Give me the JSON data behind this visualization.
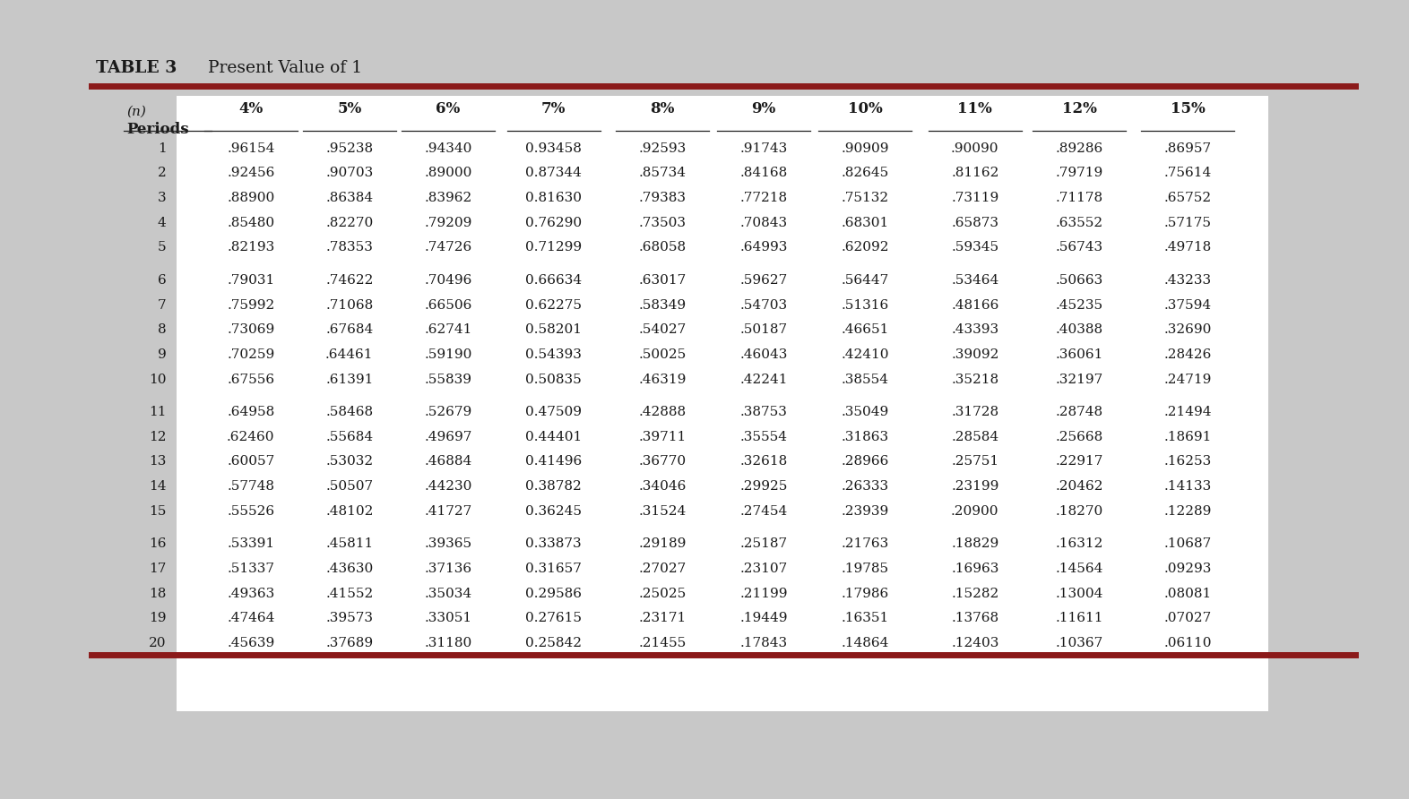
{
  "title_bold": "TABLE 3",
  "title_normal": "  Present Value of 1",
  "columns": [
    "(n)\nPeriods",
    "4%",
    "5%",
    "6%",
    "7%",
    "8%",
    "9%",
    "10%",
    "11%",
    "12%",
    "15%"
  ],
  "rows": [
    [
      1,
      ".96154",
      ".95238",
      ".94340",
      "0.93458",
      ".92593",
      ".91743",
      ".90909",
      ".90090",
      ".89286",
      ".86957"
    ],
    [
      2,
      ".92456",
      ".90703",
      ".89000",
      "0.87344",
      ".85734",
      ".84168",
      ".82645",
      ".81162",
      ".79719",
      ".75614"
    ],
    [
      3,
      ".88900",
      ".86384",
      ".83962",
      "0.81630",
      ".79383",
      ".77218",
      ".75132",
      ".73119",
      ".71178",
      ".65752"
    ],
    [
      4,
      ".85480",
      ".82270",
      ".79209",
      "0.76290",
      ".73503",
      ".70843",
      ".68301",
      ".65873",
      ".63552",
      ".57175"
    ],
    [
      5,
      ".82193",
      ".78353",
      ".74726",
      "0.71299",
      ".68058",
      ".64993",
      ".62092",
      ".59345",
      ".56743",
      ".49718"
    ],
    [
      6,
      ".79031",
      ".74622",
      ".70496",
      "0.66634",
      ".63017",
      ".59627",
      ".56447",
      ".53464",
      ".50663",
      ".43233"
    ],
    [
      7,
      ".75992",
      ".71068",
      ".66506",
      "0.62275",
      ".58349",
      ".54703",
      ".51316",
      ".48166",
      ".45235",
      ".37594"
    ],
    [
      8,
      ".73069",
      ".67684",
      ".62741",
      "0.58201",
      ".54027",
      ".50187",
      ".46651",
      ".43393",
      ".40388",
      ".32690"
    ],
    [
      9,
      ".70259",
      ".64461",
      ".59190",
      "0.54393",
      ".50025",
      ".46043",
      ".42410",
      ".39092",
      ".36061",
      ".28426"
    ],
    [
      10,
      ".67556",
      ".61391",
      ".55839",
      "0.50835",
      ".46319",
      ".42241",
      ".38554",
      ".35218",
      ".32197",
      ".24719"
    ],
    [
      11,
      ".64958",
      ".58468",
      ".52679",
      "0.47509",
      ".42888",
      ".38753",
      ".35049",
      ".31728",
      ".28748",
      ".21494"
    ],
    [
      12,
      ".62460",
      ".55684",
      ".49697",
      "0.44401",
      ".39711",
      ".35554",
      ".31863",
      ".28584",
      ".25668",
      ".18691"
    ],
    [
      13,
      ".60057",
      ".53032",
      ".46884",
      "0.41496",
      ".36770",
      ".32618",
      ".28966",
      ".25751",
      ".22917",
      ".16253"
    ],
    [
      14,
      ".57748",
      ".50507",
      ".44230",
      "0.38782",
      ".34046",
      ".29925",
      ".26333",
      ".23199",
      ".20462",
      ".14133"
    ],
    [
      15,
      ".55526",
      ".48102",
      ".41727",
      "0.36245",
      ".31524",
      ".27454",
      ".23939",
      ".20900",
      ".18270",
      ".12289"
    ],
    [
      16,
      ".53391",
      ".45811",
      ".39365",
      "0.33873",
      ".29189",
      ".25187",
      ".21763",
      ".18829",
      ".16312",
      ".10687"
    ],
    [
      17,
      ".51337",
      ".43630",
      ".37136",
      "0.31657",
      ".27027",
      ".23107",
      ".19785",
      ".16963",
      ".14564",
      ".09293"
    ],
    [
      18,
      ".49363",
      ".41552",
      ".35034",
      "0.29586",
      ".25025",
      ".21199",
      ".17986",
      ".15282",
      ".13004",
      ".08081"
    ],
    [
      19,
      ".47464",
      ".39573",
      ".33051",
      "0.27615",
      ".23171",
      ".19449",
      ".16351",
      ".13768",
      ".11611",
      ".07027"
    ],
    [
      20,
      ".45639",
      ".37689",
      ".31180",
      "0.25842",
      ".21455",
      ".17843",
      ".14864",
      ".12403",
      ".10367",
      ".06110"
    ]
  ],
  "group_breaks": [
    5,
    10,
    15
  ],
  "bg_color": "#c8c8c8",
  "card_color": "#ffffff",
  "dark_red": "#8B1A1A",
  "header_line_color": "#222222",
  "text_color": "#1a1a1a"
}
